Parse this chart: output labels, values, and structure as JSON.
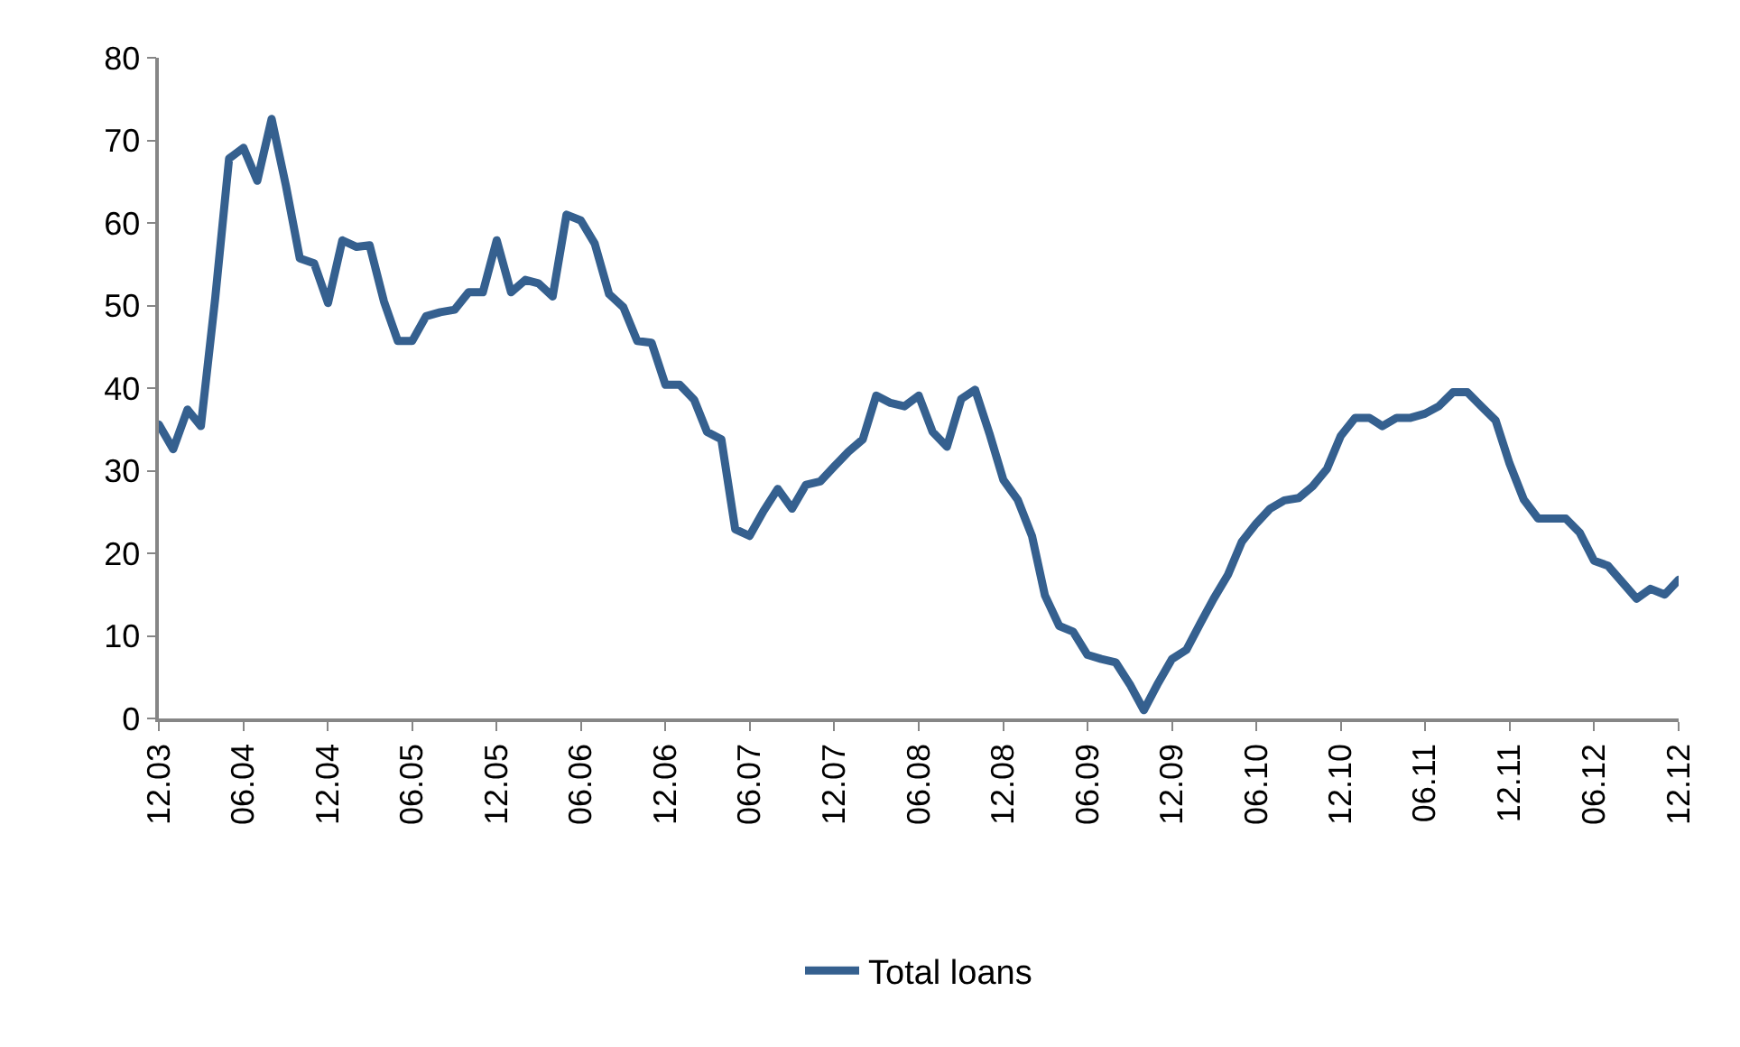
{
  "chart_data": {
    "type": "line",
    "x": [
      "2003-12",
      "2004-01",
      "2004-02",
      "2004-03",
      "2004-04",
      "2004-05",
      "2004-06",
      "2004-07",
      "2004-08",
      "2004-09",
      "2004-10",
      "2004-11",
      "2004-12",
      "2005-01",
      "2005-02",
      "2005-03",
      "2005-04",
      "2005-05",
      "2005-06",
      "2005-07",
      "2005-08",
      "2005-09",
      "2005-10",
      "2005-11",
      "2005-12",
      "2006-01",
      "2006-02",
      "2006-03",
      "2006-04",
      "2006-05",
      "2006-06",
      "2006-07",
      "2006-08",
      "2006-09",
      "2006-10",
      "2006-11",
      "2006-12",
      "2007-01",
      "2007-02",
      "2007-03",
      "2007-04",
      "2007-05",
      "2007-06",
      "2007-07",
      "2007-08",
      "2007-09",
      "2007-10",
      "2007-11",
      "2007-12",
      "2008-01",
      "2008-02",
      "2008-03",
      "2008-04",
      "2008-05",
      "2008-06",
      "2008-07",
      "2008-08",
      "2008-09",
      "2008-10",
      "2008-11",
      "2008-12",
      "2009-01",
      "2009-02",
      "2009-03",
      "2009-04",
      "2009-05",
      "2009-06",
      "2009-07",
      "2009-08",
      "2009-09",
      "2009-10",
      "2009-11",
      "2009-12",
      "2010-01",
      "2010-02",
      "2010-03",
      "2010-04",
      "2010-05",
      "2010-06",
      "2010-07",
      "2010-08",
      "2010-09",
      "2010-10",
      "2010-11",
      "2010-12",
      "2011-01",
      "2011-02",
      "2011-03",
      "2011-04",
      "2011-05",
      "2011-06",
      "2011-07",
      "2011-08",
      "2011-09",
      "2011-10",
      "2011-11",
      "2011-12",
      "2012-01",
      "2012-02",
      "2012-03",
      "2012-04",
      "2012-05",
      "2012-06",
      "2012-07",
      "2012-08",
      "2012-09",
      "2012-10",
      "2012-11",
      "2012-12"
    ],
    "series": [
      {
        "name": "Total loans",
        "color": "#35608f",
        "values": [
          35.6,
          32.6,
          37.4,
          35.4,
          50.9,
          67.8,
          69.1,
          65.1,
          72.6,
          64.5,
          55.7,
          55.1,
          50.3,
          57.9,
          57.1,
          57.3,
          50.5,
          45.7,
          45.7,
          48.7,
          49.2,
          49.5,
          51.6,
          51.6,
          57.9,
          51.6,
          53.1,
          52.7,
          51.1,
          61.0,
          60.3,
          57.5,
          51.4,
          49.8,
          45.7,
          45.5,
          40.4,
          40.4,
          38.6,
          34.7,
          33.8,
          22.9,
          22.1,
          25.1,
          27.8,
          25.4,
          28.3,
          28.7,
          30.5,
          32.3,
          33.8,
          39.1,
          38.2,
          37.8,
          39.1,
          34.7,
          32.9,
          38.7,
          39.8,
          34.5,
          28.9,
          26.5,
          22.1,
          14.9,
          11.2,
          10.5,
          7.7,
          7.2,
          6.8,
          4.1,
          1.0,
          4.3,
          7.2,
          8.3,
          11.6,
          14.5,
          17.4,
          21.4,
          23.6,
          25.4,
          26.4,
          26.7,
          28.1,
          30.2,
          34.2,
          36.4,
          36.4,
          35.4,
          36.4,
          36.4,
          36.9,
          37.8,
          39.5,
          39.5,
          37.8,
          36.1,
          30.9,
          26.5,
          24.2,
          24.2,
          24.2,
          22.5,
          19.1,
          18.5,
          16.5,
          14.5,
          15.7,
          15.0,
          16.8
        ]
      }
    ],
    "xlim": [
      "2003-12",
      "2012-12"
    ],
    "xticks": [
      {
        "value": "2003-12",
        "label": "12.03"
      },
      {
        "value": "2004-06",
        "label": "06.04"
      },
      {
        "value": "2004-12",
        "label": "12.04"
      },
      {
        "value": "2005-06",
        "label": "06.05"
      },
      {
        "value": "2005-12",
        "label": "12.05"
      },
      {
        "value": "2006-06",
        "label": "06.06"
      },
      {
        "value": "2006-12",
        "label": "12.06"
      },
      {
        "value": "2007-06",
        "label": "06.07"
      },
      {
        "value": "2007-12",
        "label": "12.07"
      },
      {
        "value": "2008-06",
        "label": "06.08"
      },
      {
        "value": "2008-12",
        "label": "12.08"
      },
      {
        "value": "2009-06",
        "label": "06.09"
      },
      {
        "value": "2009-12",
        "label": "12.09"
      },
      {
        "value": "2010-06",
        "label": "06.10"
      },
      {
        "value": "2010-12",
        "label": "12.10"
      },
      {
        "value": "2011-06",
        "label": "06.11"
      },
      {
        "value": "2011-12",
        "label": "12.11"
      },
      {
        "value": "2012-06",
        "label": "06.12"
      },
      {
        "value": "2012-12",
        "label": "12.12"
      }
    ],
    "ylim": [
      0,
      80
    ],
    "yticks": [
      0,
      10,
      20,
      30,
      40,
      50,
      60,
      70,
      80
    ],
    "grid": false,
    "legend": "bottom",
    "marker": "none",
    "line_style": "solid"
  }
}
